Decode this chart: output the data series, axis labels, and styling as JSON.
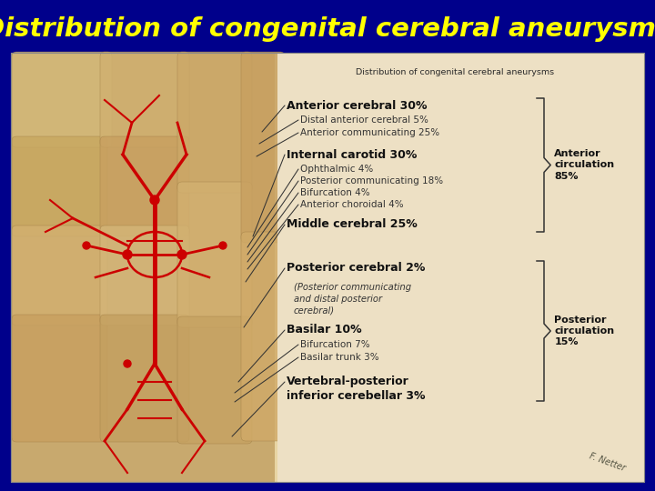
{
  "title": "Distribution of congenital cerebral aneurysms",
  "title_color": "#FFFF00",
  "title_fontsize": 21,
  "background_color": "#00008B",
  "inner_title": "Distribution of congenital cerebral aneurysms",
  "anterior_header": "Anterior cerebral 30%",
  "anterior_sub1": "Distal anterior cerebral 5%",
  "anterior_sub2": "Anterior communicating 25%",
  "internal_header": "Internal carotid 30%",
  "internal_sub": [
    "Ophthalmic 4%",
    "Posterior communicating 18%",
    "Bifurcation 4%",
    "Anterior choroidal 4%"
  ],
  "middle_header": "Middle cerebral 25%",
  "posterior_header": "Posterior cerebral 2%",
  "posterior_sub_italic": "(Posterior communicating\nand distal posterior\ncerebral)",
  "basilar_header": "Basilar 10%",
  "basilar_sub": [
    "Bifurcation 7%",
    "Basilar trunk 3%"
  ],
  "vertebral_header": "Vertebral-posterior\ninferior cerebellar 3%",
  "anterior_circulation_label": "Anterior\ncirculation\n85%",
  "posterior_circulation_label": "Posterior\ncirculation\n15%",
  "panel_bg": "#E8D5A3",
  "brain_bg": "#C8A96E",
  "vessel_color": "#CC0000",
  "text_color_header": "#111111",
  "text_color_sub": "#333333"
}
